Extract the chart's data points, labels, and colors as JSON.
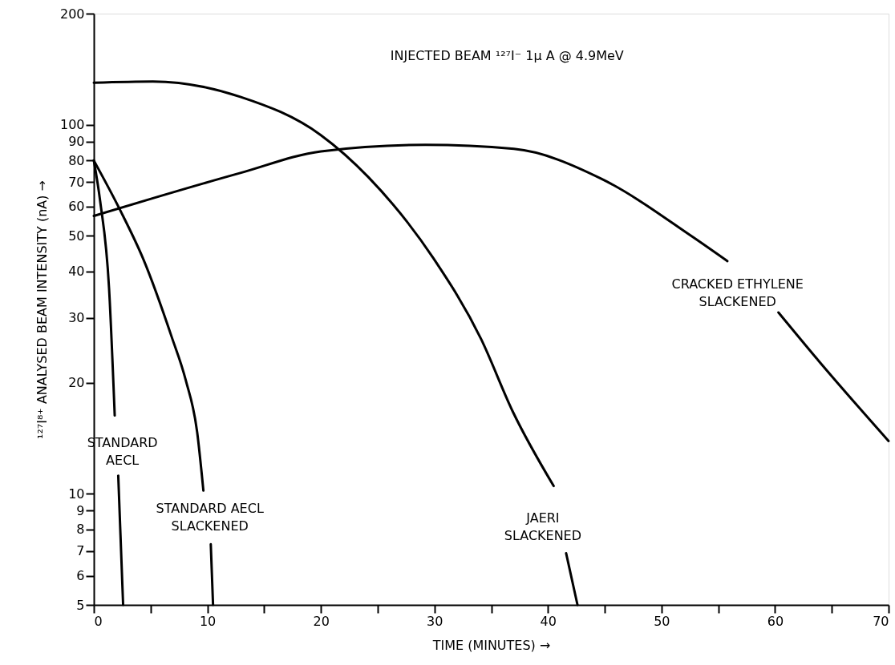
{
  "chart_data": {
    "type": "line",
    "title": "INJECTED BEAM ¹²⁷I⁻ 1µ A @ 4.9MeV",
    "xlabel": "TIME (MINUTES) →",
    "ylabel": "¹²⁷I⁸⁺ ANALYSED BEAM INTENSITY (nA) →",
    "log": "y",
    "grid": false,
    "marker": "none",
    "line_style": "solid",
    "xlim": [
      0,
      70
    ],
    "xticks": [
      0,
      {
        "value": 5,
        "label": null
      },
      10,
      {
        "value": 15,
        "label": null
      },
      20,
      {
        "value": 25,
        "label": null
      },
      30,
      {
        "value": 35,
        "label": null
      },
      40,
      {
        "value": 45,
        "label": null
      },
      50,
      {
        "value": 55,
        "label": null
      },
      60,
      {
        "value": 65,
        "label": null
      },
      70
    ],
    "ylim": [
      5,
      200
    ],
    "yticks": [
      5,
      6,
      7,
      8,
      9,
      10,
      20,
      30,
      40,
      50,
      60,
      70,
      80,
      90,
      100,
      200
    ],
    "series": [
      {
        "color": "#000000",
        "x": [
          0,
          0.56,
          1.34,
          1.84,
          2.0,
          2.15,
          2.58
        ],
        "values": [
          80,
          62,
          36.1,
          16.3,
          null,
          11.2,
          5
        ]
      },
      {
        "color": "#000000",
        "x": [
          0,
          2.33,
          4.35,
          6.86,
          8.1,
          9.1,
          9.65,
          10.0,
          10.3,
          10.5
        ],
        "values": [
          80,
          58.6,
          43.3,
          26.6,
          20.3,
          14.7,
          10.2,
          null,
          7.3,
          5
        ]
      },
      {
        "color": "#000000",
        "x": [
          0,
          5.2,
          12.9,
          20,
          24.2,
          29.9,
          34.1,
          36.9,
          40.5,
          41.0,
          41.6,
          42.6
        ],
        "values": [
          130,
          131,
          119,
          93.7,
          72,
          43.5,
          26.3,
          16.7,
          10.5,
          null,
          6.9,
          5
        ]
      },
      {
        "color": "#000000",
        "x": [
          0,
          12.9,
          20,
          29.2,
          37,
          44.7,
          52.6,
          55.8,
          58,
          60.3,
          63.8,
          70
        ],
        "values": [
          56.6,
          74,
          84.7,
          88.2,
          86,
          71.4,
          50,
          42.7,
          null,
          31,
          23,
          13.9
        ]
      }
    ],
    "annotations": [
      "STANDARD\nAECL",
      "STANDARD AECL\nSLACKENED",
      "JAERI\nSLACKENED",
      "CRACKED ETHYLENE\nSLACKENED"
    ]
  }
}
